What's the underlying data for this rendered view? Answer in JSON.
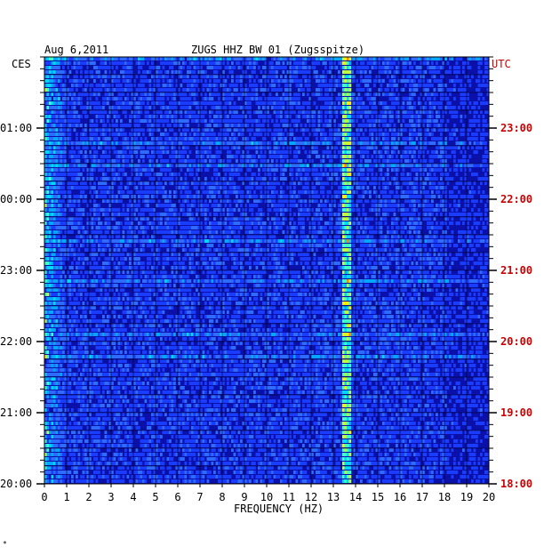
{
  "header": {
    "date": "Aug 6,2011",
    "station": "ZUGS HHZ BW 01 (Zugsspitze)"
  },
  "axes": {
    "left_label": "CES",
    "right_label": "UTC",
    "x_title": "FREQUENCY (HZ)"
  },
  "footer_mark": "*",
  "colors": {
    "background_blue": "#0a10a8",
    "low": "#1a3cff",
    "mid": "#00d8ff",
    "high": "#ffee00",
    "peak": "#ff3000",
    "right_labels": "#cc0000"
  },
  "chart_data": {
    "type": "heatmap",
    "title": "ZUGS HHZ BW 01 (Zugsspitze)",
    "subtitle": "Aug 6,2011",
    "xlabel": "FREQUENCY (HZ)",
    "x_ticks": [
      "0",
      "1",
      "2",
      "3",
      "4",
      "5",
      "6",
      "7",
      "8",
      "9",
      "10",
      "11",
      "12",
      "13",
      "14",
      "15",
      "16",
      "17",
      "18",
      "19",
      "20"
    ],
    "xlim": [
      0,
      20
    ],
    "left_time_axis": {
      "name": "CES",
      "ticks": [
        "01:00",
        "00:00",
        "23:00",
        "22:00",
        "21:00",
        "20:00"
      ]
    },
    "right_time_axis": {
      "name": "UTC",
      "ticks": [
        "23:00",
        "22:00",
        "21:00",
        "20:00",
        "19:00",
        "18:00"
      ]
    },
    "notes": "Spectrogram of seismic amplitude vs frequency; persistent narrow band near 13.5 Hz, elevated energy below 1 Hz."
  }
}
